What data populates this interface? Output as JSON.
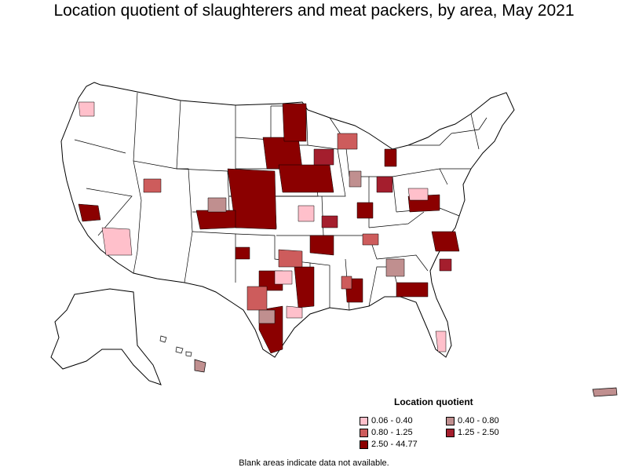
{
  "title": "Location quotient of slaughterers and meat packers, by area, May 2021",
  "legend": {
    "title": "Location quotient",
    "items": [
      {
        "label": "0.06 - 0.40",
        "color": "#ffc0cb"
      },
      {
        "label": "0.40 - 0.80",
        "color": "#c08f8f"
      },
      {
        "label": "0.80 - 1.25",
        "color": "#cd5c5c"
      },
      {
        "label": "1.25 - 2.50",
        "color": "#a41e2d"
      },
      {
        "label": "2.50 - 44.77",
        "color": "#8b0000"
      }
    ]
  },
  "footnote": "Blank areas indicate data not available.",
  "colors": {
    "border": "#000000",
    "background": "#ffffff"
  }
}
